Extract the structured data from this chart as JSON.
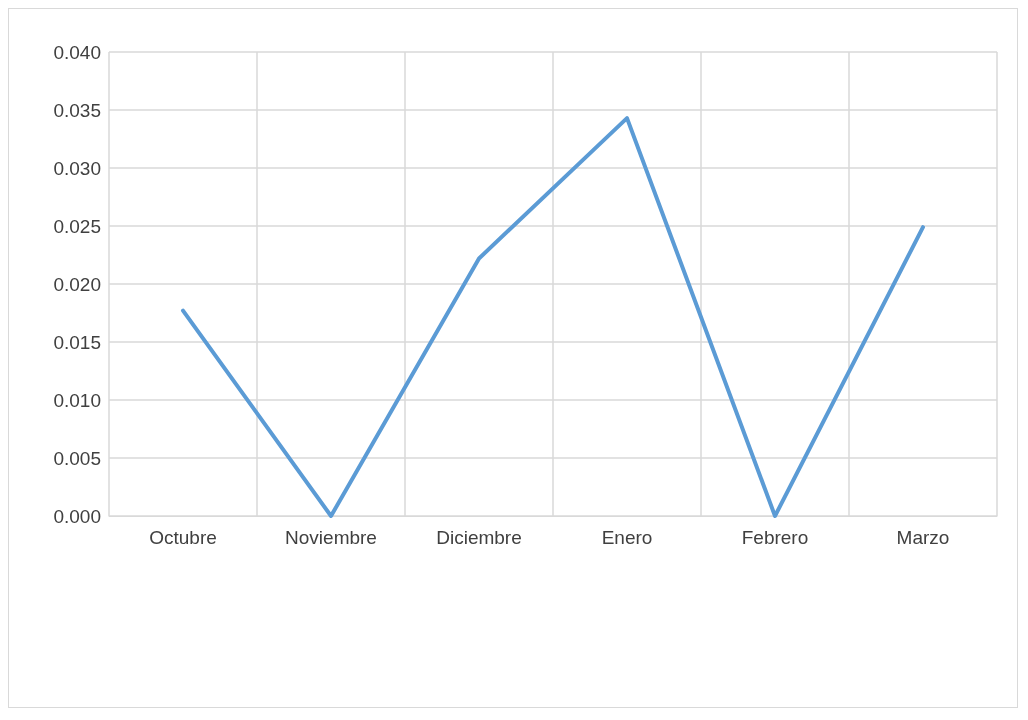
{
  "chart_data": {
    "type": "line",
    "categories": [
      "Octubre",
      "Noviembre",
      "Diciembre",
      "Enero",
      "Febrero",
      "Marzo"
    ],
    "series": [
      {
        "color": "#5b9bd5",
        "values": [
          0.0177,
          0,
          0.0222,
          0.0343,
          0,
          0.0249
        ]
      }
    ],
    "ylim": [
      0,
      0.04
    ],
    "yticks": [
      {
        "value": 0,
        "label": "0.000"
      },
      {
        "value": 0.005,
        "label": "0.005"
      },
      {
        "value": 0.01,
        "label": "0.010"
      },
      {
        "value": 0.015,
        "label": "0.015"
      },
      {
        "value": 0.02,
        "label": "0.020"
      },
      {
        "value": 0.025,
        "label": "0.025"
      },
      {
        "value": 0.03,
        "label": "0.030"
      },
      {
        "value": 0.035,
        "label": "0.035"
      },
      {
        "value": 0.04,
        "label": "0.040"
      }
    ],
    "grid": true,
    "marker": "none",
    "line_style": "solid"
  }
}
